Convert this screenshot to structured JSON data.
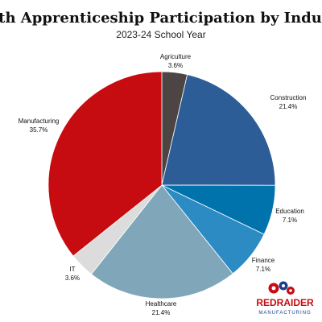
{
  "chart_data": {
    "type": "pie",
    "title": "Youth Apprenticeship Participation by Industry",
    "subtitle": "2023-24 School Year",
    "slices": [
      {
        "label": "Agriculture",
        "value_label": "3.6%",
        "value": 3.6,
        "color": "#4d4444"
      },
      {
        "label": "Construction",
        "value_label": "21.4%",
        "value": 21.4,
        "color": "#2d5d97"
      },
      {
        "label": "Education",
        "value_label": "7.1%",
        "value": 7.1,
        "color": "#0073ad"
      },
      {
        "label": "Finance",
        "value_label": "7.1%",
        "value": 7.1,
        "color": "#2d8bc4"
      },
      {
        "label": "Healthcare",
        "value_label": "21.4%",
        "value": 21.4,
        "color": "#7fa6b9"
      },
      {
        "label": "IT",
        "value_label": "3.6%",
        "value": 3.6,
        "color": "#dcdcdc"
      },
      {
        "label": "Manufacturing",
        "value_label": "35.7%",
        "value": 35.7,
        "color": "#c70c11"
      }
    ],
    "legend": "none"
  },
  "logo": {
    "text_primary": "REDRAIDER",
    "text_secondary": "MANUFACTURING",
    "colors": {
      "red": "#c70c11",
      "blue": "#1a3f8f"
    }
  }
}
